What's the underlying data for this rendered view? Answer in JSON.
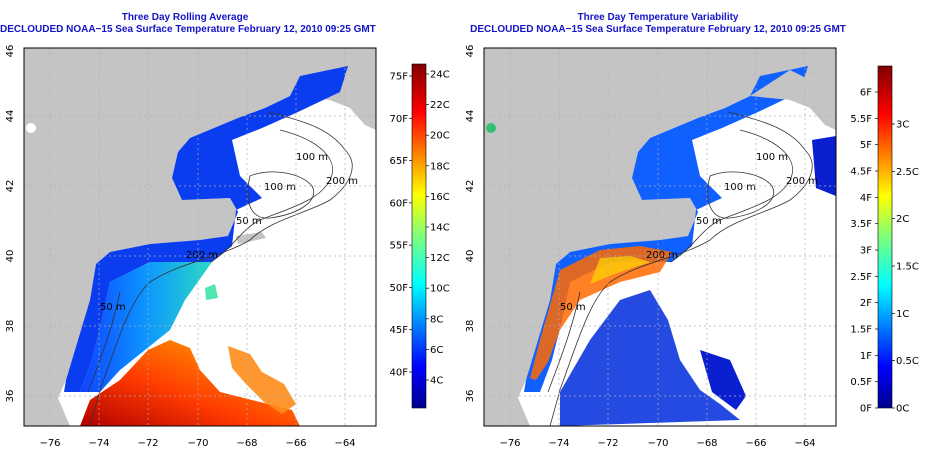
{
  "colors": {
    "land": "#c4c4c4",
    "nodata": "#ffffff",
    "grid": "#b0b0b0",
    "title": "#1414c8",
    "contour": "#333333"
  },
  "left_panel": {
    "title_line1": "Three Day Rolling Average",
    "title_line2": "DECLOUDED NOAA−15 Sea Surface Temperature February 12, 2010 09:25 GMT",
    "colorbar": {
      "palette": "jet",
      "celsius_labels": [
        "24C",
        "22C",
        "20C",
        "18C",
        "16C",
        "14C",
        "12C",
        "10C",
        "8C",
        "6C",
        "4C"
      ],
      "fahrenheit_labels": [
        "75F",
        "70F",
        "65F",
        "60F",
        "55F",
        "50F",
        "45F",
        "40F"
      ]
    }
  },
  "right_panel": {
    "title_line1": "Three Day Temperature Variability",
    "title_line2": "DECLOUDED NOAA−15 Sea Surface Temperature February 12, 2010 09:25 GMT",
    "colorbar": {
      "palette": "jet",
      "fahrenheit_labels": [
        "6F",
        "5.5F",
        "5F",
        "4.5F",
        "4F",
        "3.5F",
        "3F",
        "2.5F",
        "2F",
        "1.5F",
        "1F",
        "0.5F",
        "0F"
      ],
      "celsius_labels": [
        "3C",
        "2.5C",
        "2C",
        "1.5C",
        "1C",
        "0.5C",
        "0C"
      ]
    }
  },
  "axes": {
    "x_ticks": [
      "−76",
      "−74",
      "−72",
      "−70",
      "−68",
      "−66",
      "−64"
    ],
    "y_ticks": [
      "46",
      "44",
      "42",
      "40",
      "38",
      "36"
    ]
  },
  "contour_labels": [
    "100 m",
    "200 m",
    "100 m",
    "50 m",
    "50 m",
    "200 m",
    "50 m"
  ]
}
